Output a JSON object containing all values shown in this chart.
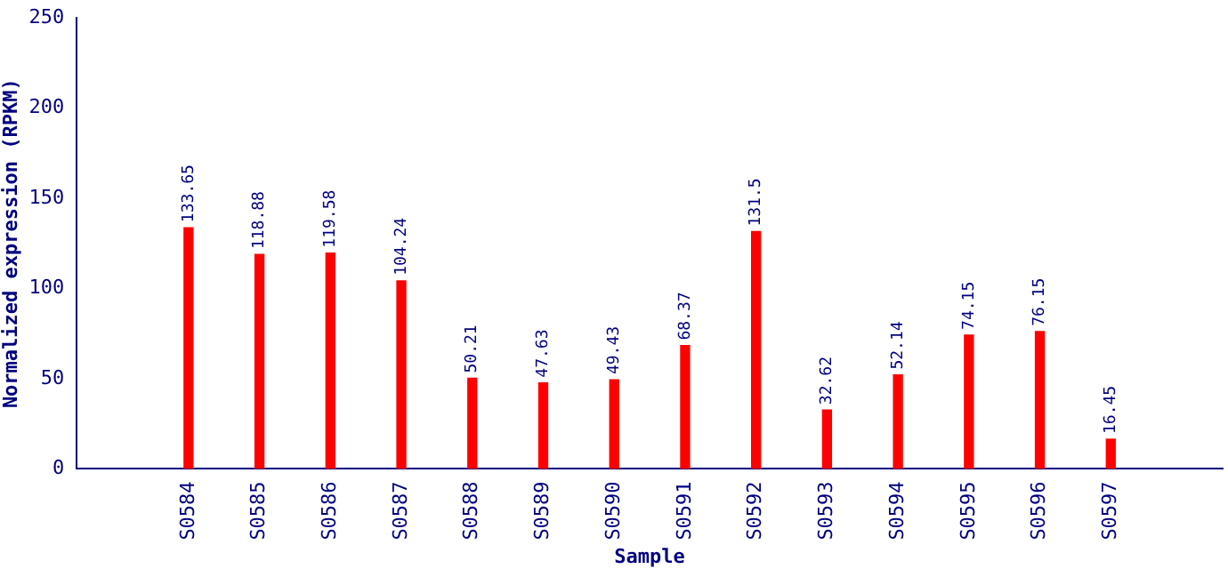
{
  "chart_data": {
    "type": "bar",
    "xlabel": "Sample",
    "ylabel": "Normalized expression (RPKM)",
    "categories": [
      "S0584",
      "S0585",
      "S0586",
      "S0587",
      "S0588",
      "S0589",
      "S0590",
      "S0591",
      "S0592",
      "S0593",
      "S0594",
      "S0595",
      "S0596",
      "S0597"
    ],
    "values": [
      133.65,
      118.88,
      119.58,
      104.24,
      50.21,
      47.63,
      49.43,
      68.37,
      131.5,
      32.62,
      52.14,
      74.15,
      76.15,
      16.45
    ],
    "color": "#ff0000",
    "ylim": [
      0,
      250
    ],
    "yticks": [
      0,
      50,
      100,
      150,
      200,
      250
    ],
    "grid": false,
    "legend": false,
    "data_labels": true
  }
}
